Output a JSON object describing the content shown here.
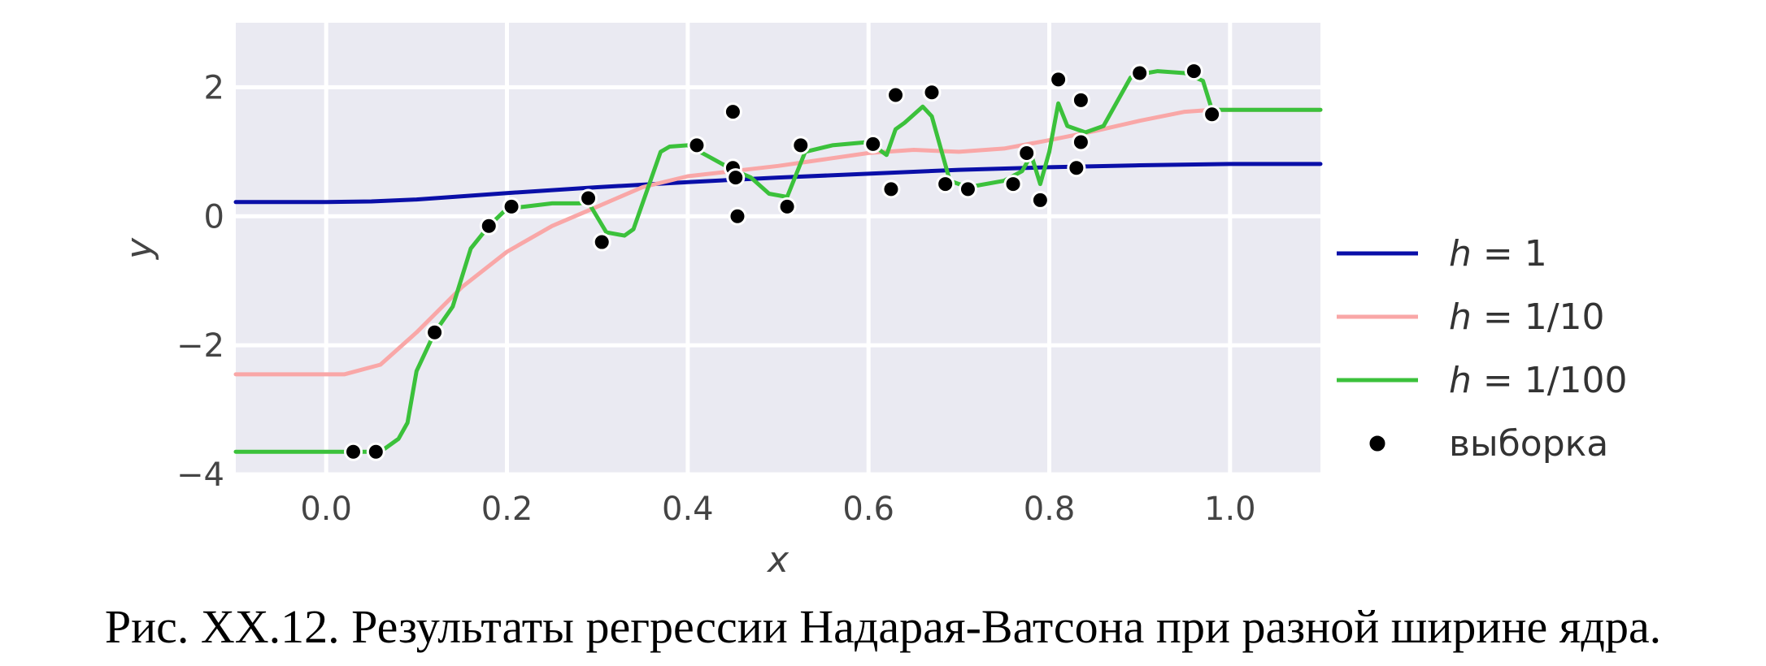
{
  "caption": "Рис. XX.12. Результаты регрессии Надарая-Ватсона при разной ширине ядра.",
  "chart_data": {
    "type": "line",
    "xlabel": "x",
    "ylabel": "y",
    "xlim": [
      -0.1,
      1.1
    ],
    "ylim": [
      -4,
      3
    ],
    "xticks": [
      0.0,
      0.2,
      0.4,
      0.6,
      0.8,
      1.0
    ],
    "xtick_labels": [
      "0.0",
      "0.2",
      "0.4",
      "0.6",
      "0.8",
      "1.0"
    ],
    "yticks": [
      -4,
      -2,
      0,
      2
    ],
    "ytick_labels": [
      "−4",
      "−2",
      "0",
      "2"
    ],
    "grid": true,
    "background": "#EAEAF2",
    "legend_position": "right",
    "series": [
      {
        "name": "h = 1",
        "label_parts": [
          "h",
          " = 1"
        ],
        "color": "#0A0FA8",
        "x": [
          -0.1,
          0.0,
          0.05,
          0.1,
          0.2,
          0.3,
          0.4,
          0.5,
          0.6,
          0.7,
          0.8,
          0.9,
          1.0,
          1.1
        ],
        "y": [
          0.22,
          0.22,
          0.23,
          0.26,
          0.36,
          0.45,
          0.53,
          0.6,
          0.66,
          0.72,
          0.76,
          0.79,
          0.81,
          0.81
        ]
      },
      {
        "name": "h = 1/10",
        "label_parts": [
          "h",
          " = 1/10"
        ],
        "color": "#F9A7A7",
        "x": [
          -0.1,
          0.02,
          0.06,
          0.1,
          0.15,
          0.2,
          0.25,
          0.3,
          0.35,
          0.4,
          0.45,
          0.5,
          0.55,
          0.6,
          0.65,
          0.7,
          0.75,
          0.8,
          0.85,
          0.9,
          0.95,
          0.98,
          1.1
        ],
        "y": [
          -2.45,
          -2.45,
          -2.3,
          -1.8,
          -1.1,
          -0.55,
          -0.15,
          0.15,
          0.45,
          0.62,
          0.7,
          0.78,
          0.88,
          0.98,
          1.03,
          1.0,
          1.05,
          1.18,
          1.32,
          1.48,
          1.62,
          1.65,
          1.65
        ]
      },
      {
        "name": "h = 1/100",
        "label_parts": [
          "h",
          " = 1/100"
        ],
        "color": "#3BC13B",
        "x": [
          -0.1,
          0.03,
          0.06,
          0.08,
          0.09,
          0.1,
          0.12,
          0.14,
          0.16,
          0.18,
          0.2,
          0.22,
          0.25,
          0.28,
          0.29,
          0.31,
          0.33,
          0.34,
          0.36,
          0.37,
          0.38,
          0.4,
          0.42,
          0.45,
          0.47,
          0.49,
          0.51,
          0.53,
          0.56,
          0.6,
          0.62,
          0.63,
          0.64,
          0.66,
          0.67,
          0.69,
          0.71,
          0.75,
          0.77,
          0.78,
          0.79,
          0.8,
          0.81,
          0.82,
          0.84,
          0.86,
          0.88,
          0.89,
          0.9,
          0.92,
          0.95,
          0.97,
          0.98,
          1.1
        ],
        "y": [
          -3.65,
          -3.65,
          -3.65,
          -3.45,
          -3.2,
          -2.4,
          -1.8,
          -1.4,
          -0.5,
          -0.15,
          0.12,
          0.15,
          0.2,
          0.2,
          0.22,
          -0.25,
          -0.3,
          -0.2,
          0.6,
          1.0,
          1.08,
          1.1,
          0.95,
          0.72,
          0.6,
          0.35,
          0.3,
          1.0,
          1.1,
          1.15,
          0.95,
          1.35,
          1.45,
          1.7,
          1.55,
          0.55,
          0.45,
          0.55,
          0.7,
          0.95,
          0.5,
          1.0,
          1.75,
          1.4,
          1.3,
          1.4,
          1.9,
          2.15,
          2.2,
          2.25,
          2.22,
          2.1,
          1.65,
          1.65
        ]
      }
    ],
    "scatter": {
      "name": "выборка",
      "color": "#000000",
      "x": [
        0.03,
        0.055,
        0.12,
        0.18,
        0.205,
        0.29,
        0.305,
        0.41,
        0.45,
        0.45,
        0.453,
        0.455,
        0.51,
        0.525,
        0.605,
        0.625,
        0.63,
        0.67,
        0.685,
        0.71,
        0.76,
        0.775,
        0.79,
        0.81,
        0.83,
        0.835,
        0.835,
        0.9,
        0.96,
        0.98
      ],
      "y": [
        -3.65,
        -3.65,
        -1.8,
        -0.15,
        0.15,
        0.28,
        -0.4,
        1.1,
        1.62,
        0.75,
        0.6,
        0.0,
        0.15,
        1.1,
        1.12,
        0.42,
        1.88,
        1.92,
        0.5,
        0.42,
        0.5,
        0.98,
        0.25,
        2.12,
        0.75,
        1.15,
        1.8,
        2.22,
        2.25,
        1.58
      ]
    }
  }
}
